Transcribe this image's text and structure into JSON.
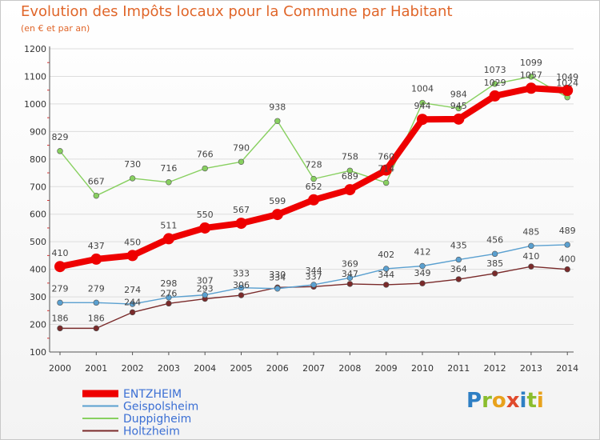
{
  "header": {
    "title": "Evolution des Impôts locaux pour la Commune par Habitant",
    "subtitle": "(en € et par an)"
  },
  "logo": {
    "letters": [
      "P",
      "r",
      "o",
      "x",
      "i",
      "t",
      "i"
    ],
    "colors": [
      "#2e7fc4",
      "#8bbd2d",
      "#e8a21c",
      "#e04a2c",
      "#2e7fc4",
      "#8bbd2d",
      "#e8a21c"
    ]
  },
  "chart_data": {
    "type": "line",
    "x": [
      "2000",
      "2001",
      "2002",
      "2003",
      "2004",
      "2005",
      "2006",
      "2007",
      "2008",
      "2009",
      "2010",
      "2011",
      "2012",
      "2013",
      "2014"
    ],
    "ylim": [
      100,
      1200
    ],
    "yticks": [
      100,
      200,
      300,
      400,
      500,
      600,
      700,
      800,
      900,
      1000,
      1100,
      1200
    ],
    "grid": "horizontal",
    "legend_position": "bottom-left",
    "series": [
      {
        "name": "ENTZHEIM",
        "color": "#ee0000",
        "values": [
          410,
          437,
          450,
          511,
          550,
          567,
          599,
          652,
          689,
          760,
          944,
          945,
          1029,
          1057,
          1049
        ]
      },
      {
        "name": "Geispolsheim",
        "color": "#5aa0d0",
        "values": [
          279,
          279,
          274,
          298,
          307,
          333,
          330,
          344,
          369,
          402,
          412,
          435,
          456,
          485,
          489
        ]
      },
      {
        "name": "Duppigheim",
        "color": "#88d060",
        "values": [
          829,
          667,
          730,
          716,
          766,
          790,
          938,
          728,
          758,
          714,
          1004,
          984,
          1073,
          1099,
          1024
        ]
      },
      {
        "name": "Holtzheim",
        "color": "#7a2a2a",
        "values": [
          186,
          186,
          244,
          276,
          293,
          306,
          334,
          337,
          347,
          344,
          349,
          364,
          385,
          410,
          400
        ]
      }
    ]
  }
}
